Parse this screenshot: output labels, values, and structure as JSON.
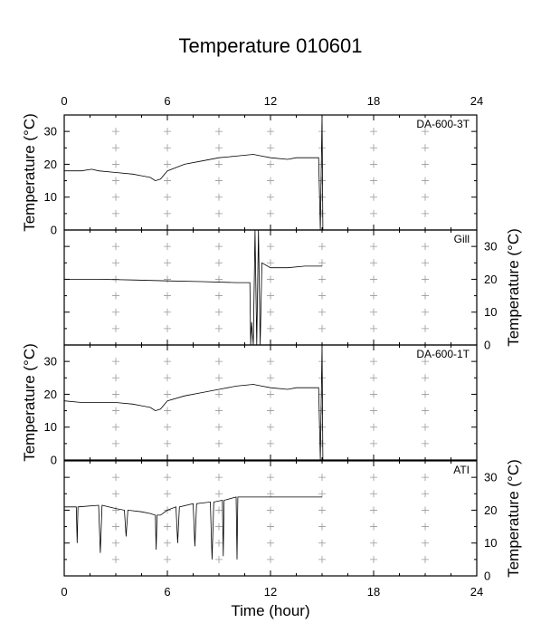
{
  "title": "Temperature 010601",
  "x_axis": {
    "label": "Time (hour)",
    "range": [
      0,
      24
    ],
    "ticks": [
      0,
      6,
      12,
      18,
      24
    ]
  },
  "y_axis": {
    "label_left": "Temperature (°C)",
    "label_right": "Temperature (°C)",
    "range": [
      0,
      35
    ],
    "ticks": [
      0,
      10,
      20,
      30
    ]
  },
  "chart_data": [
    {
      "type": "line",
      "name": "DA-600-3T",
      "x": [
        0,
        1,
        1.6,
        2,
        3,
        4,
        4.5,
        5,
        5.3,
        5.6,
        6,
        7,
        8,
        9,
        10,
        11,
        11.5,
        12,
        13,
        13.5,
        14,
        14.8,
        14.9,
        15.0,
        15.05
      ],
      "y": [
        18,
        18,
        18.5,
        18,
        17.5,
        17,
        16.5,
        16,
        15,
        15.5,
        18,
        20,
        21,
        22,
        22.5,
        23,
        22.5,
        22,
        21.5,
        22,
        22,
        22,
        0,
        35,
        0
      ],
      "ylim": [
        0,
        35
      ],
      "xlim": [
        0,
        24
      ],
      "y_axis_side": "left"
    },
    {
      "type": "line",
      "name": "Gill",
      "x": [
        0,
        2,
        4,
        6,
        8,
        10,
        10.8,
        10.85,
        10.9,
        11.0,
        11.1,
        11.2,
        11.3,
        11.4,
        11.5,
        12,
        13,
        14,
        15
      ],
      "y": [
        20,
        20,
        19.8,
        19.5,
        19.3,
        19,
        19,
        0,
        7,
        0,
        35,
        0,
        35,
        0,
        25,
        23.5,
        23.5,
        24,
        24
      ],
      "ylim": [
        0,
        35
      ],
      "xlim": [
        0,
        24
      ],
      "y_axis_side": "right"
    },
    {
      "type": "line",
      "name": "DA-600-1T",
      "x": [
        0,
        1,
        2,
        3,
        4,
        4.5,
        5,
        5.3,
        5.6,
        6,
        7,
        8,
        9,
        10,
        11,
        11.5,
        12,
        13,
        13.5,
        14,
        14.8,
        14.9,
        15.0,
        15.05
      ],
      "y": [
        18,
        17.5,
        17.5,
        17.5,
        17,
        16.5,
        16,
        15,
        15.5,
        18,
        19.5,
        20.5,
        21.5,
        22.5,
        23,
        22.5,
        22,
        21.5,
        22,
        22,
        22,
        0,
        35,
        0
      ],
      "ylim": [
        0,
        35
      ],
      "xlim": [
        0,
        24
      ],
      "y_axis_side": "left"
    },
    {
      "type": "line",
      "name": "ATI",
      "x": [
        0,
        0.7,
        0.75,
        0.8,
        2,
        2.1,
        2.2,
        3,
        3.5,
        3.6,
        3.7,
        4.5,
        5,
        5.3,
        5.35,
        5.4,
        5.6,
        6,
        6.5,
        6.6,
        6.7,
        7.5,
        7.6,
        7.7,
        8.5,
        8.6,
        8.7,
        9.2,
        9.25,
        9.3,
        10,
        10.05,
        10.1,
        10.5,
        12,
        15
      ],
      "y": [
        21,
        21,
        10,
        21,
        21.5,
        7,
        21.5,
        20.5,
        20,
        12,
        20,
        19.5,
        19,
        18.5,
        8,
        18.5,
        18.5,
        20,
        21,
        10,
        21,
        22,
        9,
        22,
        22.5,
        5,
        22.5,
        23,
        6,
        23,
        24,
        5,
        24,
        24,
        24,
        24
      ],
      "ylim": [
        0,
        35
      ],
      "xlim": [
        0,
        24
      ],
      "y_axis_side": "right"
    }
  ]
}
